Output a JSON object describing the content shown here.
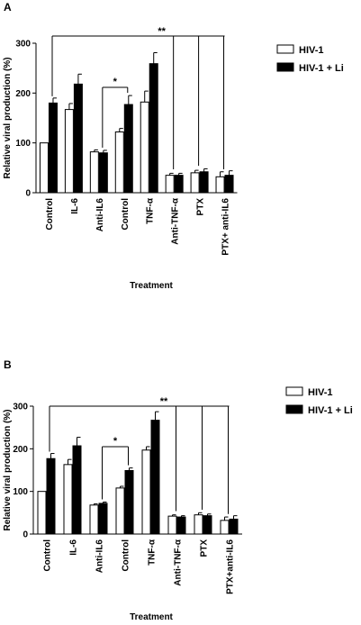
{
  "chart_data": [
    {
      "type": "bar",
      "panel_label": "A",
      "categories": [
        "Control",
        "IL-6",
        "Anti-IL6",
        "Control",
        "TNF-α",
        "Anti-TNF-α",
        "PTX",
        "PTX+ anti-IL6"
      ],
      "series": [
        {
          "name": "HIV-1",
          "values": [
            100,
            167,
            82,
            122,
            182,
            35,
            40,
            32
          ],
          "errors": [
            0,
            12,
            4,
            7,
            22,
            4,
            5,
            10
          ],
          "color": "#ffffff"
        },
        {
          "name": "HIV-1 + Li",
          "values": [
            180,
            218,
            80,
            177,
            259,
            35,
            42,
            35
          ],
          "errors": [
            10,
            20,
            5,
            18,
            22,
            4,
            6,
            9
          ],
          "color": "#000000"
        }
      ],
      "ylabel": "Relative viral production (%)",
      "xlabel": "Treatment",
      "ylim": [
        0,
        300
      ],
      "yticks": [
        "0",
        "100",
        "200",
        "300"
      ],
      "significance": {
        "bracket_label": "*",
        "overall_label": "**"
      },
      "legend_position": "top-right",
      "grid": false
    },
    {
      "type": "bar",
      "panel_label": "B",
      "categories": [
        "Control",
        "IL-6",
        "Anti-IL6",
        "Control",
        "TNF-α",
        "Anti-TNF-α",
        "PTX",
        "PTX+anti-IL6"
      ],
      "series": [
        {
          "name": "HIV-1",
          "values": [
            100,
            163,
            68,
            108,
            197,
            42,
            45,
            32
          ],
          "errors": [
            0,
            12,
            3,
            4,
            8,
            3,
            5,
            8
          ],
          "color": "#ffffff"
        },
        {
          "name": "HIV-1 + Li",
          "values": [
            177,
            207,
            72,
            149,
            267,
            40,
            43,
            35
          ],
          "errors": [
            12,
            20,
            3,
            6,
            20,
            3,
            4,
            8
          ],
          "color": "#000000"
        }
      ],
      "ylabel": "Relative viral production (%)",
      "xlabel": "Treatment",
      "ylim": [
        0,
        300
      ],
      "yticks": [
        "0",
        "100",
        "200",
        "300"
      ],
      "significance": {
        "bracket_label": "*",
        "overall_label": "**"
      },
      "legend_position": "top-right",
      "grid": false
    }
  ]
}
